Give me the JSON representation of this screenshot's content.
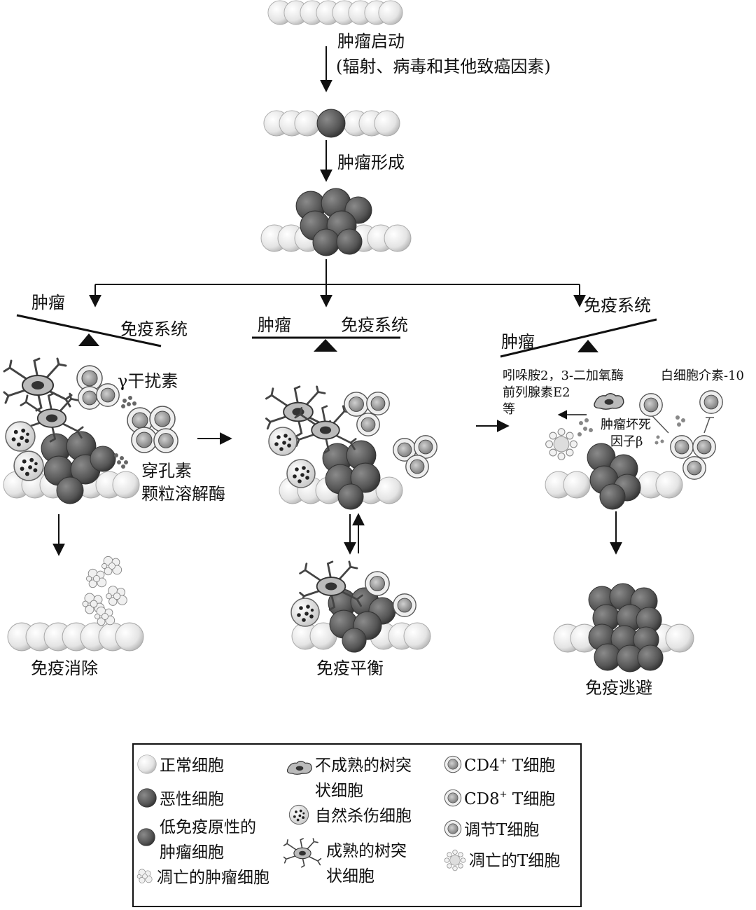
{
  "steps": {
    "initiation": "肿瘤启动",
    "initiation_causes": "(辐射、病毒和其他致癌因素)",
    "formation": "肿瘤形成"
  },
  "balance": {
    "left_tumor": "肿瘤",
    "left_immune": "免疫系统",
    "mid_tumor": "肿瘤",
    "mid_immune": "免疫系统",
    "right_immune": "免疫系统",
    "right_tumor": "肿瘤"
  },
  "factors": {
    "ifn_gamma": "γ干扰素",
    "perforin": "穿孔素",
    "granzyme": "颗粒溶解酶",
    "ido_line1": "吲哚胺2，3-二加氧酶",
    "ido_line2": "前列腺素E2",
    "ido_line3": "等",
    "il10": "白细胞介素-10",
    "tgf_line1": "肿瘤坏死",
    "tgf_line2": "因子β"
  },
  "outcomes": {
    "elimination": "免疫消除",
    "equilibrium": "免疫平衡",
    "escape": "免疫逃避"
  },
  "legend": {
    "normal_cell": "正常细胞",
    "malignant_cell": "恶性细胞",
    "low_immuno_line1": "低免疫原性的",
    "low_immuno_line2": "肿瘤细胞",
    "apoptotic_tumor": "凋亡的肿瘤细胞",
    "immature_dc_line1": "不成熟的树突",
    "immature_dc_line2": "状细胞",
    "nk_cell": "自然杀伤细胞",
    "mature_dc_line1": "成熟的树突",
    "mature_dc_line2": "状细胞",
    "cd4_prefix": "CD4",
    "cd4_suffix": " T细胞",
    "cd8_prefix": "CD8",
    "cd8_suffix": " T细胞",
    "treg": "调节T细胞",
    "apoptotic_t": "凋亡的T细胞"
  },
  "colors": {
    "normal": "#e6e6e6",
    "malignant": "#5a5a5a",
    "line": "#111111"
  }
}
